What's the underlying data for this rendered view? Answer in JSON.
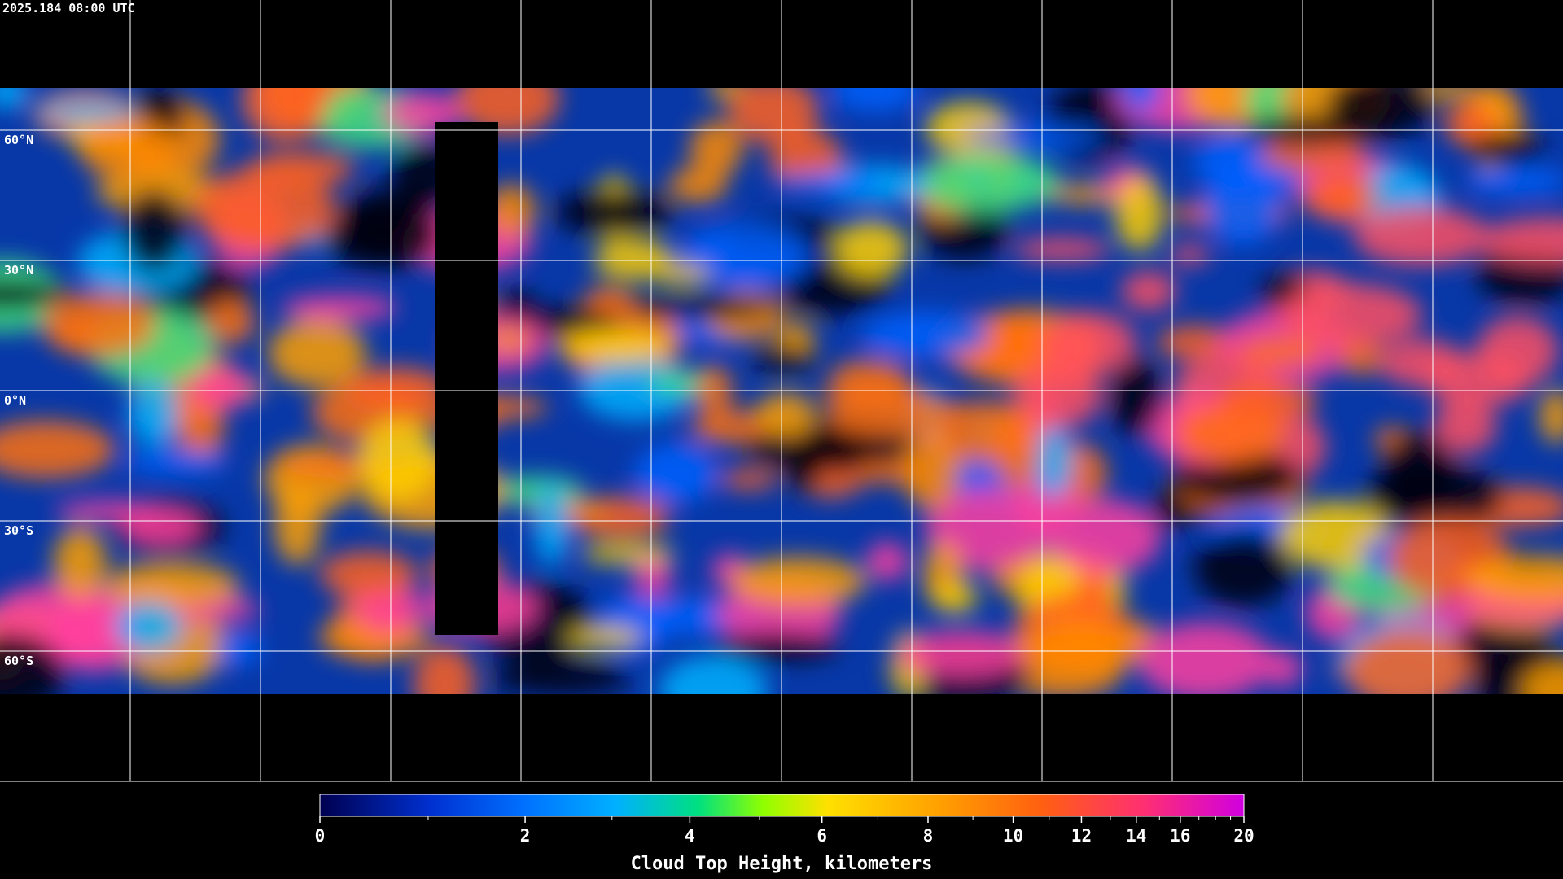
{
  "map": {
    "title": "2025.184 08:00 UTC",
    "xlim": [
      -180,
      180
    ],
    "ylim": [
      -90,
      90
    ],
    "lat_ticks": [
      {
        "value": 60,
        "label": "60°N"
      },
      {
        "value": 30,
        "label": "30°N"
      },
      {
        "value": 0,
        "label": "0°N"
      },
      {
        "value": -30,
        "label": "30°S"
      },
      {
        "value": -60,
        "label": "60°S"
      }
    ],
    "lon_grid": [
      -150,
      -120,
      -90,
      -60,
      -30,
      0,
      30,
      60,
      90,
      120,
      150
    ]
  },
  "colorbar": {
    "label": "Cloud Top Height, kilometers",
    "lim": [
      0,
      20
    ],
    "ticks": [
      0,
      2,
      4,
      6,
      8,
      10,
      12,
      14,
      16,
      20
    ],
    "minor_ticks": [
      1,
      3,
      5,
      7,
      9,
      11,
      13,
      15,
      17,
      18,
      19
    ]
  }
}
